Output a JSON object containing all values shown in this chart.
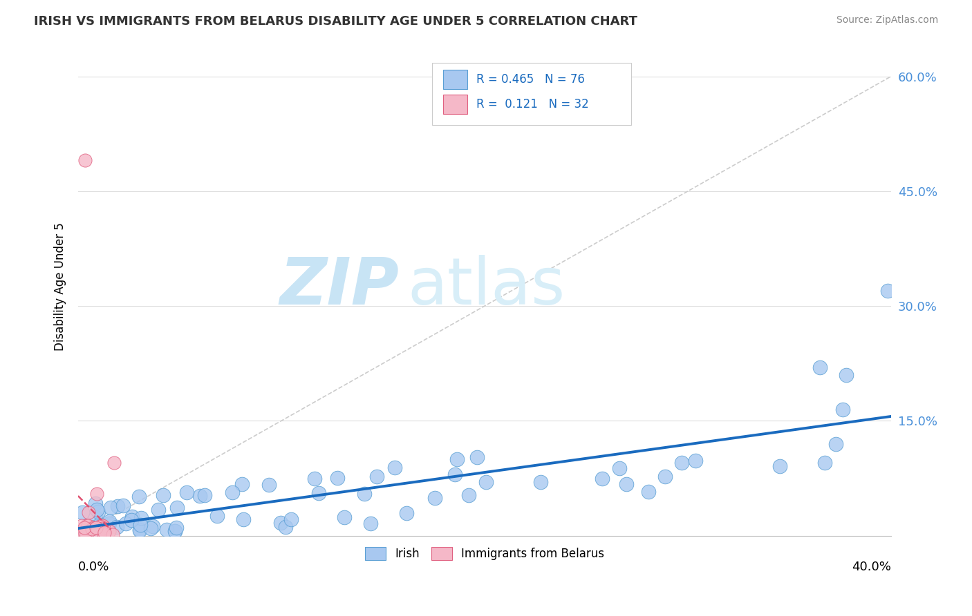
{
  "title": "IRISH VS IMMIGRANTS FROM BELARUS DISABILITY AGE UNDER 5 CORRELATION CHART",
  "source": "Source: ZipAtlas.com",
  "ylabel_label": "Disability Age Under 5",
  "y_tick_vals": [
    0.0,
    0.15,
    0.3,
    0.45,
    0.6
  ],
  "y_tick_labels": [
    "",
    "15.0%",
    "30.0%",
    "45.0%",
    "60.0%"
  ],
  "x_range": [
    0.0,
    0.4
  ],
  "y_range": [
    0.0,
    0.65
  ],
  "watermark_zip": "ZIP",
  "watermark_atlas": "atlas",
  "legend_R_irish": "0.465",
  "legend_N_irish": "76",
  "legend_R_belarus": "0.121",
  "legend_N_belarus": "32",
  "irish_color": "#a8c8f0",
  "irish_edge_color": "#5a9fd4",
  "belarus_color": "#f5b8c8",
  "belarus_edge_color": "#e06080",
  "trendline_irish_color": "#1a6bbf",
  "trendline_belarus_color": "#e05070",
  "refline_color": "#cccccc",
  "grid_color": "#dddddd",
  "title_color": "#333333",
  "source_color": "#888888",
  "tick_color": "#4a90d9",
  "watermark_color_zip": "#c8e4f5",
  "watermark_color_atlas": "#d8eef8"
}
